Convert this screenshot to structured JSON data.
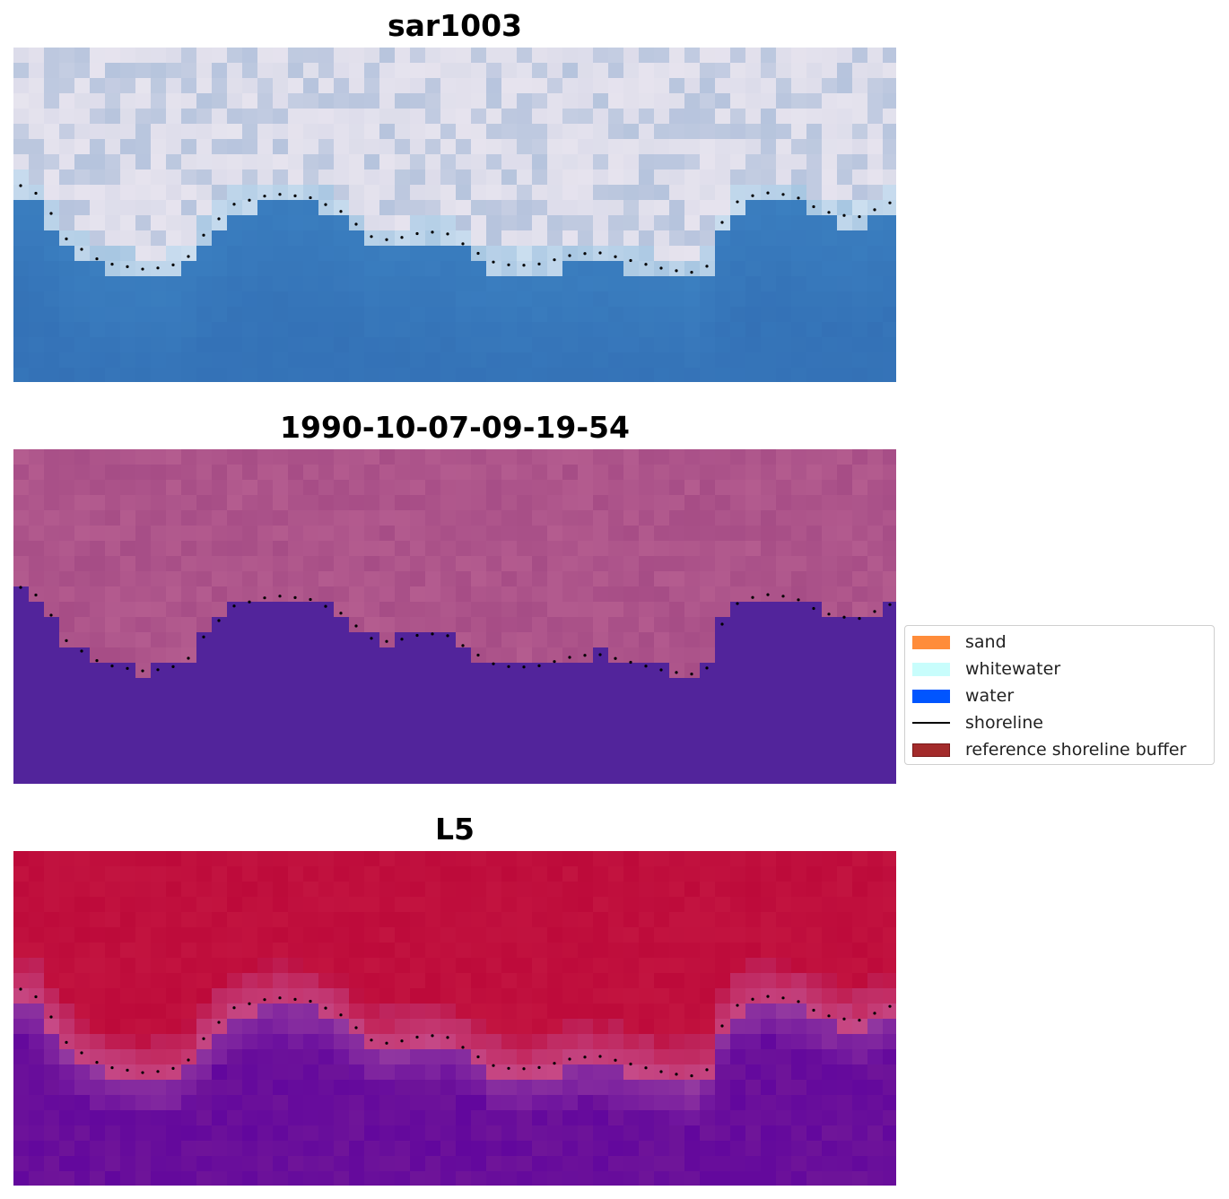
{
  "panels": [
    {
      "title": "sar1003",
      "palette": "rgb"
    },
    {
      "title": "1990-10-07-09-19-54",
      "palette": "classified"
    },
    {
      "title": "L5",
      "palette": "index"
    }
  ],
  "legend": {
    "items": [
      {
        "label": "sand",
        "kind": "patch",
        "color": "#ff8c3a"
      },
      {
        "label": "whitewater",
        "kind": "patch",
        "color": "#c8fdfc"
      },
      {
        "label": "water",
        "kind": "patch",
        "color": "#0055ff"
      },
      {
        "label": "shoreline",
        "kind": "line",
        "color": "#000000"
      },
      {
        "label": "reference shoreline buffer",
        "kind": "patch",
        "color": "#a32b2b"
      }
    ]
  },
  "colors": {
    "water_class": "#52249b",
    "land_class": "#b45c8f",
    "index_land": "#bd0a3a",
    "index_water": "#62079d",
    "rgb_water": "#3b7fc0",
    "rgb_land": "#dcdcea"
  }
}
